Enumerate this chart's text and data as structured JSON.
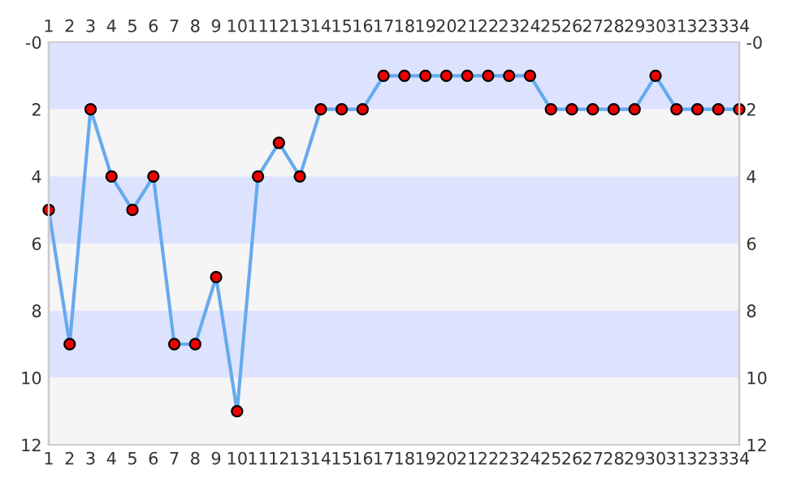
{
  "chart_data": {
    "type": "line",
    "x": [
      1,
      2,
      3,
      4,
      5,
      6,
      7,
      8,
      9,
      10,
      11,
      12,
      13,
      14,
      15,
      16,
      17,
      18,
      19,
      20,
      21,
      22,
      23,
      24,
      25,
      26,
      27,
      28,
      29,
      30,
      31,
      32,
      33,
      34
    ],
    "series": [
      {
        "color": "#66aaee",
        "colors": [
          "#ee0000",
          "#ee0000",
          "#ee0000",
          "#ee0000",
          "#ee0000",
          "#ee0000",
          "#ee0000",
          "#ee0000",
          "#ee0000",
          "#ee0000",
          "#ee0000",
          "#ee0000",
          "#ee0000",
          "#ee0000",
          "#ee0000",
          "#ee0000",
          "#ee0000",
          "#ee0000",
          "#ee0000",
          "#ee0000",
          "#ee0000",
          "#ee0000",
          "#ee0000",
          "#ee0000",
          "#ee0000",
          "#ee0000",
          "#ee0000",
          "#ee0000",
          "#ee0000",
          "#ee0000",
          "#ee0000",
          "#ee0000",
          "#ee0000",
          "#ee0000"
        ],
        "values": [
          5,
          9,
          2,
          4,
          5,
          4,
          9,
          9,
          7,
          11,
          4,
          3,
          4,
          2,
          2,
          2,
          1,
          1,
          1,
          1,
          1,
          1,
          1,
          1,
          2,
          2,
          2,
          2,
          2,
          1,
          2,
          2,
          2,
          2
        ]
      }
    ],
    "marker": "circle",
    "line_style": "solid",
    "xlim": [
      1,
      34
    ],
    "xticks": [
      1,
      2,
      3,
      4,
      5,
      6,
      7,
      8,
      9,
      10,
      11,
      12,
      13,
      14,
      15,
      16,
      17,
      18,
      19,
      20,
      21,
      22,
      23,
      24,
      25,
      26,
      27,
      28,
      29,
      30,
      31,
      32,
      33,
      34
    ],
    "x2lim": [
      1,
      34
    ],
    "x2ticks": [
      1,
      2,
      3,
      4,
      5,
      6,
      7,
      8,
      9,
      10,
      11,
      12,
      13,
      14,
      15,
      16,
      17,
      18,
      19,
      20,
      21,
      22,
      23,
      24,
      25,
      26,
      27,
      28,
      29,
      30,
      31,
      32,
      33,
      34
    ],
    "ylim": [
      12,
      0
    ],
    "yticks": [
      {
        "value": 0,
        "label": "-0"
      },
      2,
      4,
      6,
      8,
      10,
      12
    ],
    "y2lim": [
      12,
      0
    ],
    "y2ticks": [
      {
        "value": 0,
        "label": "-0"
      },
      2,
      4,
      6,
      8,
      10,
      12
    ],
    "bands": [
      {
        "axis": "y",
        "from": 0,
        "to": 2,
        "color": "#dde3ff"
      },
      {
        "axis": "y",
        "from": 2,
        "to": 4,
        "color": "#f5f5f5"
      },
      {
        "axis": "y",
        "from": 4,
        "to": 6,
        "color": "#dde3ff"
      },
      {
        "axis": "y",
        "from": 6,
        "to": 8,
        "color": "#f5f5f5"
      },
      {
        "axis": "y",
        "from": 8,
        "to": 10,
        "color": "#dde3ff"
      },
      {
        "axis": "y",
        "from": 10,
        "to": 12,
        "color": "#f5f5f5"
      }
    ],
    "grid": false,
    "legend": false
  }
}
